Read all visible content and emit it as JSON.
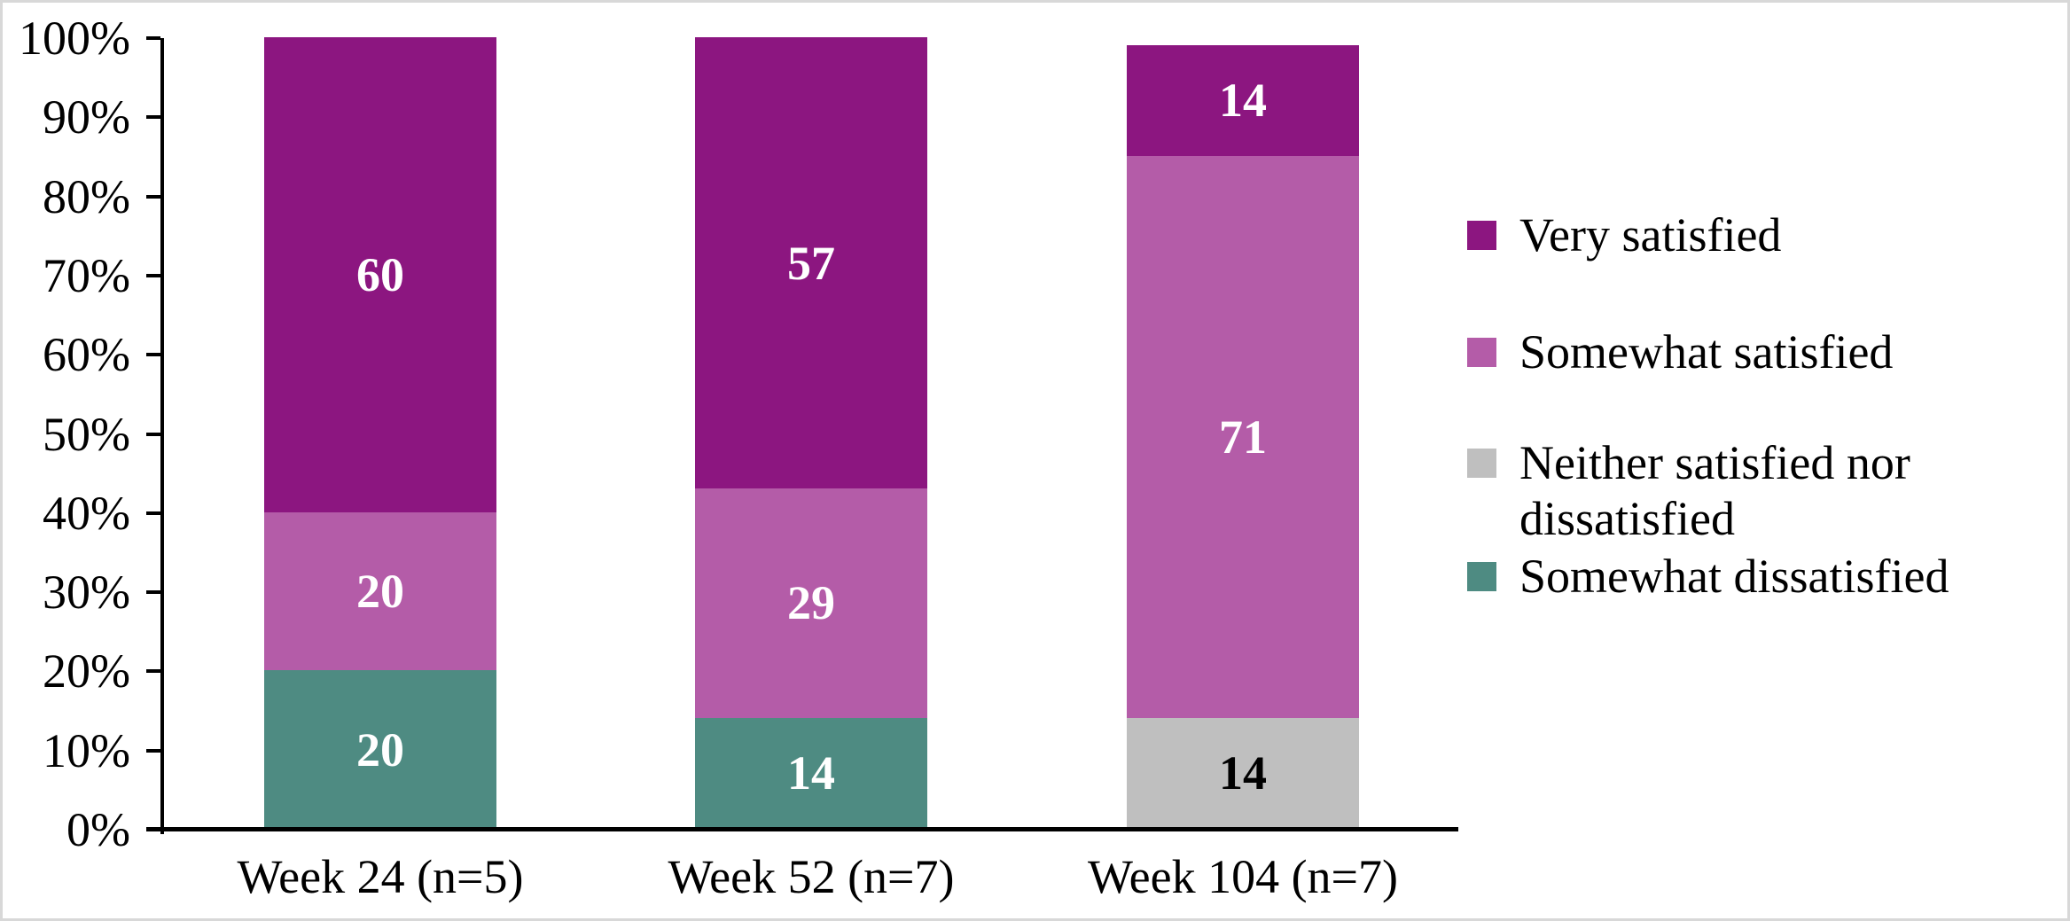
{
  "chart_data": {
    "type": "bar",
    "stacked": true,
    "orientation": "vertical",
    "title": "",
    "xlabel": "",
    "ylabel": "",
    "categories": [
      "Week 24 (n=5)",
      "Week 52 (n=7)",
      "Week 104 (n=7)"
    ],
    "series": [
      {
        "name": "Very satisfied",
        "color": "#8C1680",
        "label_color": "#FFFFFF",
        "values": [
          60,
          57,
          14
        ]
      },
      {
        "name": "Somewhat satisfied",
        "color": "#B45CA8",
        "label_color": "#FFFFFF",
        "values": [
          20,
          29,
          71
        ]
      },
      {
        "name": "Neither satisfied nor dissatisfied",
        "color": "#BFBFBF",
        "label_color": "#000000",
        "values": [
          0,
          0,
          14
        ]
      },
      {
        "name": "Somewhat dissatisfied",
        "color": "#4E8B82",
        "label_color": "#FFFFFF",
        "values": [
          20,
          14,
          0
        ]
      }
    ],
    "y_ticks": [
      "0%",
      "10%",
      "20%",
      "30%",
      "40%",
      "50%",
      "60%",
      "70%",
      "80%",
      "90%",
      "100%"
    ],
    "ylim": [
      0,
      100
    ],
    "grid": false,
    "legend_position": "right",
    "axis_color": "#000000",
    "text_color": "#000000",
    "background_color": "#FFFFFF",
    "border_color": "#D8D8D8"
  }
}
